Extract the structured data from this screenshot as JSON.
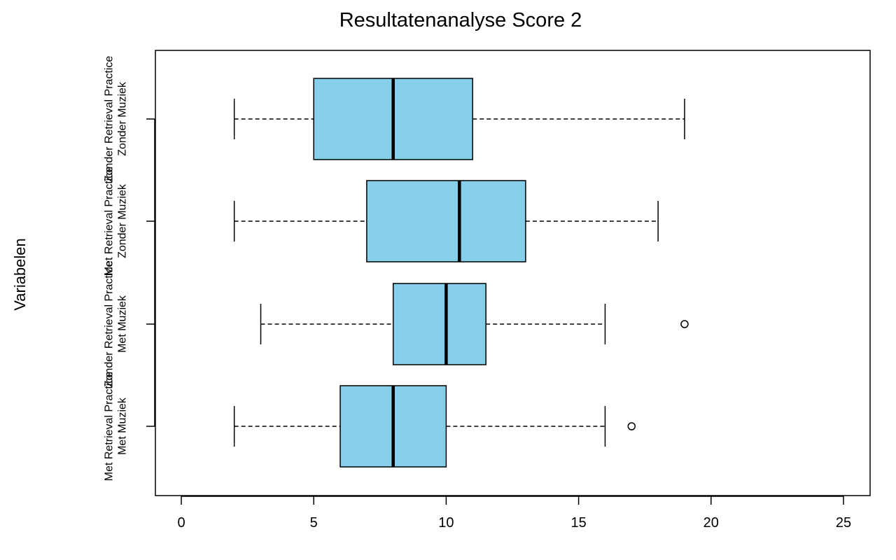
{
  "chart_data": {
    "type": "boxplot",
    "orientation": "horizontal",
    "title": "Resultatenanalyse Score 2",
    "xlabel": "",
    "ylabel": "Variabelen",
    "xlim": [
      -1,
      26
    ],
    "xticks": [
      0,
      5,
      10,
      15,
      20,
      25
    ],
    "box_color": "#87CEEB",
    "grid": false,
    "legend": "none",
    "groups": [
      {
        "label_lines": [
          "Met Retrieval Practice",
          "Met Muziek"
        ],
        "whisker_low": 2,
        "q1": 6,
        "median": 8,
        "q3": 10,
        "whisker_high": 16,
        "outliers": [
          17
        ]
      },
      {
        "label_lines": [
          "Zonder Retrieval Practice",
          "Met Muziek"
        ],
        "whisker_low": 3,
        "q1": 8,
        "median": 10,
        "q3": 11.5,
        "whisker_high": 16,
        "outliers": [
          19
        ]
      },
      {
        "label_lines": [
          "Met Retrieval Practice",
          "Zonder Muziek"
        ],
        "whisker_low": 2,
        "q1": 7,
        "median": 10.5,
        "q3": 13,
        "whisker_high": 18,
        "outliers": []
      },
      {
        "label_lines": [
          "Zonder Retrieval Practice",
          "Zonder Muziek"
        ],
        "whisker_low": 2,
        "q1": 5,
        "median": 8,
        "q3": 11,
        "whisker_high": 19,
        "outliers": []
      }
    ]
  }
}
